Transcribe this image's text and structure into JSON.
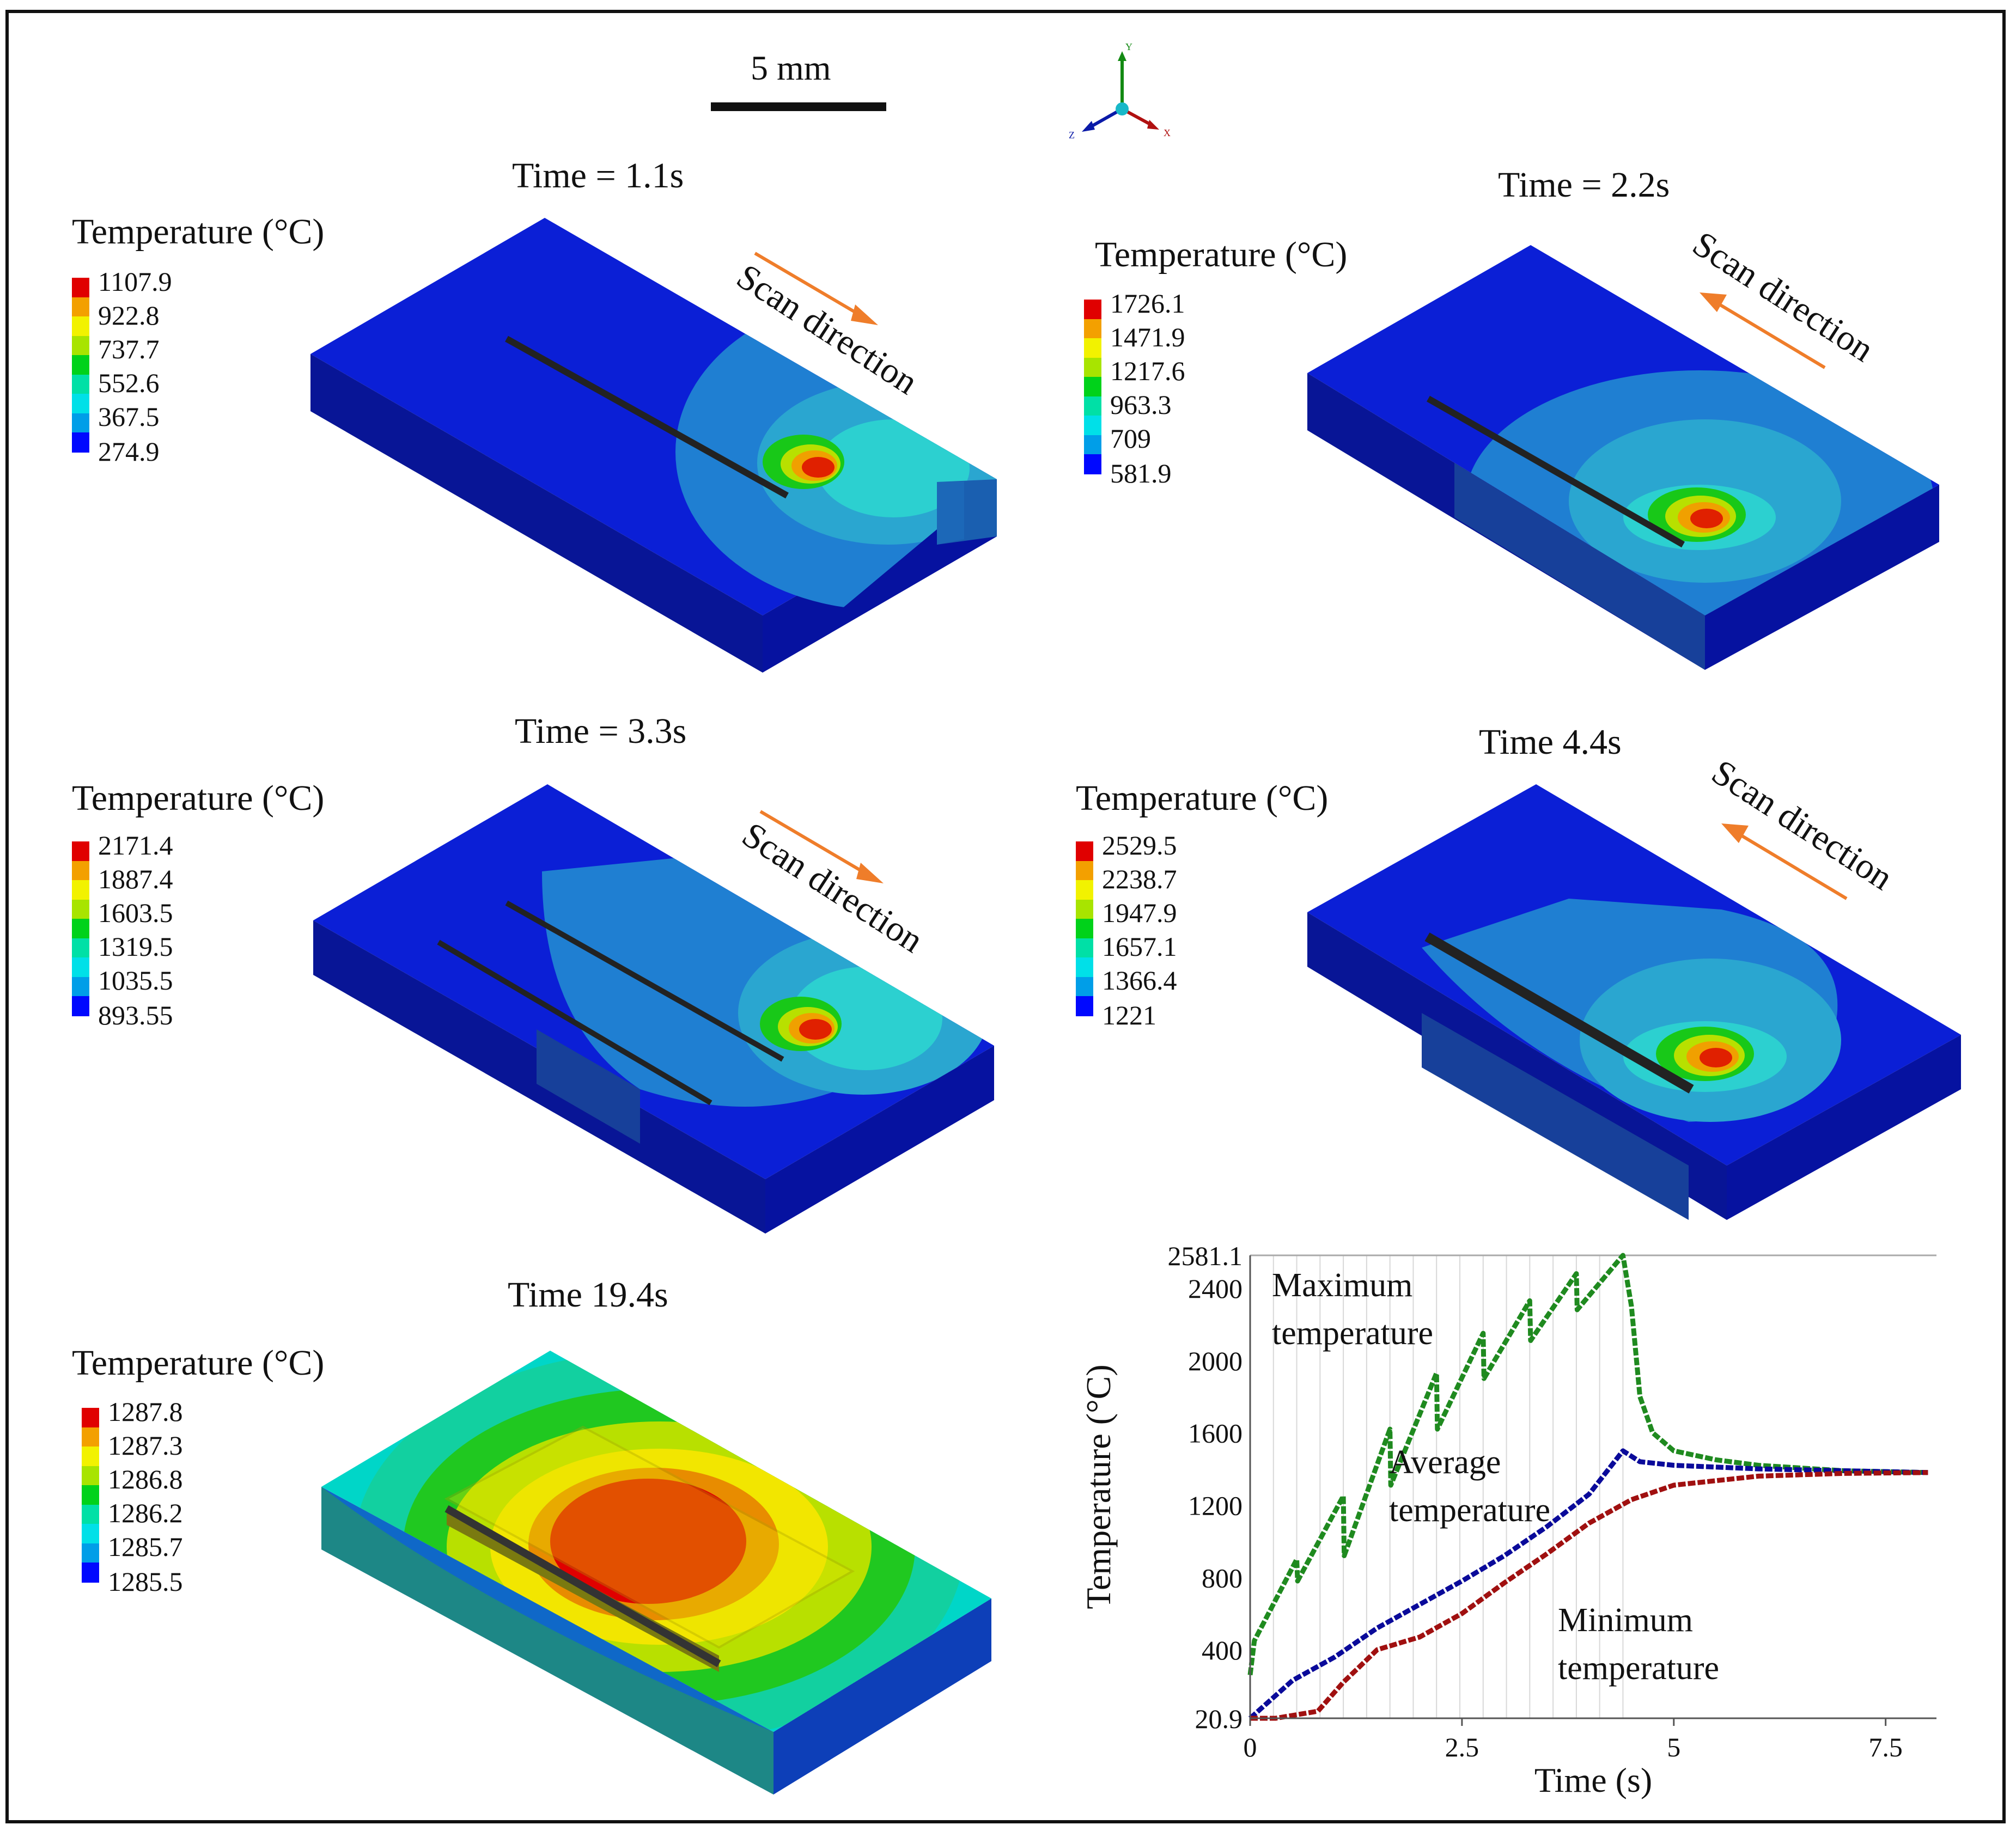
{
  "scale_bar": {
    "label": "5 mm"
  },
  "axes_triad": {
    "y": "Y",
    "x": "X",
    "z": "Z"
  },
  "legend_colors": [
    "#e00000",
    "#f3a000",
    "#f2f200",
    "#a8e400",
    "#00d21a",
    "#00e0a6",
    "#00e0e8",
    "#009ee8",
    "#0008ff"
  ],
  "panels": [
    {
      "time": "Time = 1.1s",
      "legend_title": "Temperature (°C)",
      "scan": "Scan direction",
      "scan_dir": "right",
      "ticks": [
        "1107.9",
        "922.8",
        "737.7",
        "552.6",
        "367.5",
        "274.9"
      ]
    },
    {
      "time": "Time = 2.2s",
      "legend_title": "Temperature (°C)",
      "scan": "Scan direction",
      "scan_dir": "left",
      "ticks": [
        "1726.1",
        "1471.9",
        "1217.6",
        "963.3",
        "709",
        "581.9"
      ]
    },
    {
      "time": "Time = 3.3s",
      "legend_title": "Temperature (°C)",
      "scan": "Scan direction",
      "scan_dir": "right",
      "ticks": [
        "2171.4",
        "1887.4",
        "1603.5",
        "1319.5",
        "1035.5",
        "893.55"
      ]
    },
    {
      "time": "Time 4.4s",
      "legend_title": "Temperature (°C)",
      "scan": "Scan direction",
      "scan_dir": "left",
      "ticks": [
        "2529.5",
        "2238.7",
        "1947.9",
        "1657.1",
        "1366.4",
        "1221"
      ]
    },
    {
      "time": "Time 19.4s",
      "legend_title": "Temperature (°C)",
      "ticks": [
        "1287.8",
        "1287.3",
        "1286.8",
        "1286.2",
        "1285.7",
        "1285.5"
      ]
    }
  ],
  "chart_data": {
    "type": "line",
    "xlabel": "Time (s)",
    "ylabel": "Temperature (°C)",
    "xlim": [
      0,
      8.1
    ],
    "ylim": [
      20.9,
      2581.1
    ],
    "x_ticks": [
      "0",
      "2.5",
      "5",
      "7.5"
    ],
    "y_ticks": [
      "20.9",
      "400",
      "800",
      "1200",
      "1600",
      "2000",
      "2400",
      "2581.1"
    ],
    "series": [
      {
        "name": "Maximum temperature",
        "label_lines": [
          "Maximum",
          "temperature"
        ],
        "color": "#1f8a1f",
        "x": [
          0,
          0.05,
          0.55,
          0.56,
          1.1,
          1.11,
          1.65,
          1.66,
          2.2,
          2.21,
          2.75,
          2.76,
          3.3,
          3.31,
          3.85,
          3.86,
          4.4,
          4.5,
          4.6,
          4.75,
          5.0,
          5.5,
          6.0,
          7.0,
          8.0
        ],
        "y": [
          260,
          450,
          900,
          780,
          1250,
          920,
          1620,
          1310,
          1930,
          1620,
          2150,
          1900,
          2330,
          2110,
          2480,
          2280,
          2581.1,
          2300,
          1800,
          1600,
          1500,
          1450,
          1420,
          1390,
          1380
        ]
      },
      {
        "name": "Average temperature",
        "label_lines": [
          "Average",
          "temperature"
        ],
        "color": "#0a0a9a",
        "x": [
          0,
          0.5,
          1.0,
          1.5,
          2.0,
          2.5,
          3.0,
          3.5,
          4.0,
          4.4,
          4.6,
          5.0,
          6.0,
          7.0,
          8.0
        ],
        "y": [
          20.9,
          230,
          360,
          520,
          650,
          780,
          920,
          1080,
          1260,
          1500,
          1440,
          1420,
          1400,
          1390,
          1380
        ]
      },
      {
        "name": "Minimum temperature",
        "label_lines": [
          "Minimum",
          "temperature"
        ],
        "color": "#a01010",
        "x": [
          0,
          0.3,
          0.8,
          1.1,
          1.5,
          2.0,
          2.5,
          3.0,
          3.5,
          4.0,
          4.5,
          5.0,
          6.0,
          7.0,
          8.0
        ],
        "y": [
          20.9,
          20.9,
          60,
          220,
          400,
          470,
          600,
          770,
          930,
          1100,
          1230,
          1310,
          1360,
          1375,
          1380
        ]
      }
    ]
  }
}
